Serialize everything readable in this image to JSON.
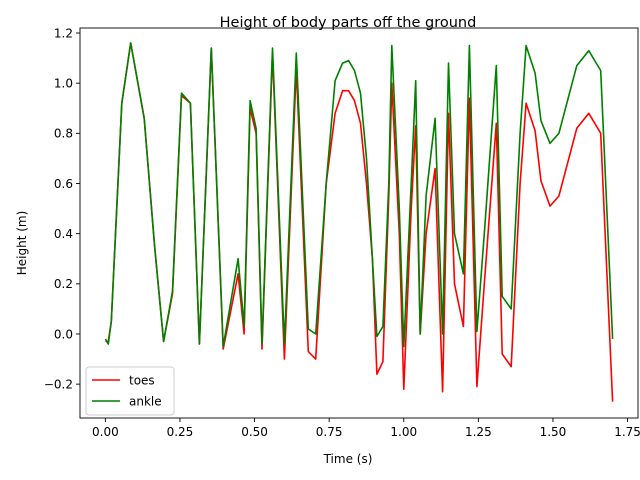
{
  "chart_data": {
    "type": "line",
    "title": "Height of body parts off the ground",
    "xlabel": "Time (s)",
    "ylabel": "Height (m)",
    "xlim": [
      -0.085,
      1.785
    ],
    "ylim": [
      -0.335,
      1.22
    ],
    "xticks": [
      0.0,
      0.25,
      0.5,
      0.75,
      1.0,
      1.25,
      1.5,
      1.75
    ],
    "xtick_labels": [
      "0.00",
      "0.25",
      "0.50",
      "0.75",
      "1.00",
      "1.25",
      "1.50",
      "1.75"
    ],
    "yticks": [
      -0.2,
      0.0,
      0.2,
      0.4,
      0.6,
      0.8,
      1.0,
      1.2
    ],
    "ytick_labels": [
      "−0.2",
      "0.0",
      "0.2",
      "0.4",
      "0.6",
      "0.8",
      "1.0",
      "1.2"
    ],
    "grid": false,
    "legend_position": "lower-left",
    "series": [
      {
        "name": "toes",
        "color": "#ff0000",
        "points": [
          [
            0.0,
            -0.03
          ],
          [
            0.01,
            -0.03
          ],
          [
            0.02,
            0.05
          ],
          [
            0.055,
            0.92
          ],
          [
            0.085,
            1.16
          ],
          [
            0.13,
            0.86
          ],
          [
            0.165,
            0.35
          ],
          [
            0.195,
            -0.03
          ],
          [
            0.225,
            0.16
          ],
          [
            0.255,
            0.95
          ],
          [
            0.285,
            0.92
          ],
          [
            0.315,
            -0.04
          ],
          [
            0.355,
            1.14
          ],
          [
            0.395,
            -0.06
          ],
          [
            0.445,
            0.24
          ],
          [
            0.465,
            0.0
          ],
          [
            0.485,
            0.9
          ],
          [
            0.505,
            0.8
          ],
          [
            0.525,
            -0.06
          ],
          [
            0.56,
            1.12
          ],
          [
            0.6,
            -0.1
          ],
          [
            0.64,
            1.06
          ],
          [
            0.68,
            -0.07
          ],
          [
            0.705,
            -0.1
          ],
          [
            0.74,
            0.6
          ],
          [
            0.77,
            0.88
          ],
          [
            0.795,
            0.97
          ],
          [
            0.815,
            0.97
          ],
          [
            0.835,
            0.93
          ],
          [
            0.855,
            0.84
          ],
          [
            0.875,
            0.6
          ],
          [
            0.895,
            0.3
          ],
          [
            0.91,
            -0.16
          ],
          [
            0.93,
            -0.11
          ],
          [
            0.95,
            0.55
          ],
          [
            0.96,
            1.0
          ],
          [
            0.985,
            0.4
          ],
          [
            1.0,
            -0.22
          ],
          [
            1.025,
            0.5
          ],
          [
            1.04,
            0.83
          ],
          [
            1.055,
            0.0
          ],
          [
            1.075,
            0.4
          ],
          [
            1.105,
            0.66
          ],
          [
            1.13,
            -0.23
          ],
          [
            1.15,
            0.88
          ],
          [
            1.17,
            0.2
          ],
          [
            1.2,
            0.03
          ],
          [
            1.22,
            0.94
          ],
          [
            1.245,
            -0.21
          ],
          [
            1.27,
            0.2
          ],
          [
            1.31,
            0.84
          ],
          [
            1.33,
            -0.08
          ],
          [
            1.36,
            -0.13
          ],
          [
            1.39,
            0.6
          ],
          [
            1.41,
            0.92
          ],
          [
            1.44,
            0.81
          ],
          [
            1.46,
            0.61
          ],
          [
            1.49,
            0.51
          ],
          [
            1.52,
            0.55
          ],
          [
            1.58,
            0.82
          ],
          [
            1.62,
            0.88
          ],
          [
            1.66,
            0.8
          ],
          [
            1.7,
            -0.27
          ]
        ]
      },
      {
        "name": "ankle",
        "color": "#008000",
        "points": [
          [
            0.0,
            -0.02
          ],
          [
            0.01,
            -0.04
          ],
          [
            0.02,
            0.05
          ],
          [
            0.055,
            0.92
          ],
          [
            0.085,
            1.16
          ],
          [
            0.13,
            0.86
          ],
          [
            0.165,
            0.35
          ],
          [
            0.195,
            -0.03
          ],
          [
            0.225,
            0.17
          ],
          [
            0.255,
            0.96
          ],
          [
            0.285,
            0.92
          ],
          [
            0.315,
            -0.04
          ],
          [
            0.355,
            1.14
          ],
          [
            0.395,
            -0.05
          ],
          [
            0.445,
            0.3
          ],
          [
            0.465,
            0.03
          ],
          [
            0.485,
            0.93
          ],
          [
            0.505,
            0.82
          ],
          [
            0.525,
            -0.04
          ],
          [
            0.56,
            1.14
          ],
          [
            0.6,
            -0.04
          ],
          [
            0.64,
            1.12
          ],
          [
            0.68,
            0.02
          ],
          [
            0.705,
            0.0
          ],
          [
            0.74,
            0.6
          ],
          [
            0.77,
            1.01
          ],
          [
            0.795,
            1.08
          ],
          [
            0.815,
            1.09
          ],
          [
            0.835,
            1.05
          ],
          [
            0.855,
            0.96
          ],
          [
            0.875,
            0.7
          ],
          [
            0.895,
            0.3
          ],
          [
            0.91,
            -0.01
          ],
          [
            0.93,
            0.03
          ],
          [
            0.95,
            0.6
          ],
          [
            0.96,
            1.15
          ],
          [
            0.985,
            0.5
          ],
          [
            1.0,
            -0.05
          ],
          [
            1.025,
            0.6
          ],
          [
            1.04,
            1.01
          ],
          [
            1.055,
            0.0
          ],
          [
            1.075,
            0.55
          ],
          [
            1.105,
            0.86
          ],
          [
            1.13,
            0.0
          ],
          [
            1.15,
            1.08
          ],
          [
            1.17,
            0.4
          ],
          [
            1.2,
            0.24
          ],
          [
            1.22,
            1.15
          ],
          [
            1.245,
            0.01
          ],
          [
            1.27,
            0.4
          ],
          [
            1.31,
            1.07
          ],
          [
            1.33,
            0.15
          ],
          [
            1.36,
            0.1
          ],
          [
            1.39,
            0.8
          ],
          [
            1.41,
            1.15
          ],
          [
            1.44,
            1.04
          ],
          [
            1.46,
            0.85
          ],
          [
            1.49,
            0.76
          ],
          [
            1.52,
            0.8
          ],
          [
            1.58,
            1.07
          ],
          [
            1.62,
            1.13
          ],
          [
            1.66,
            1.05
          ],
          [
            1.7,
            -0.02
          ]
        ]
      }
    ]
  }
}
